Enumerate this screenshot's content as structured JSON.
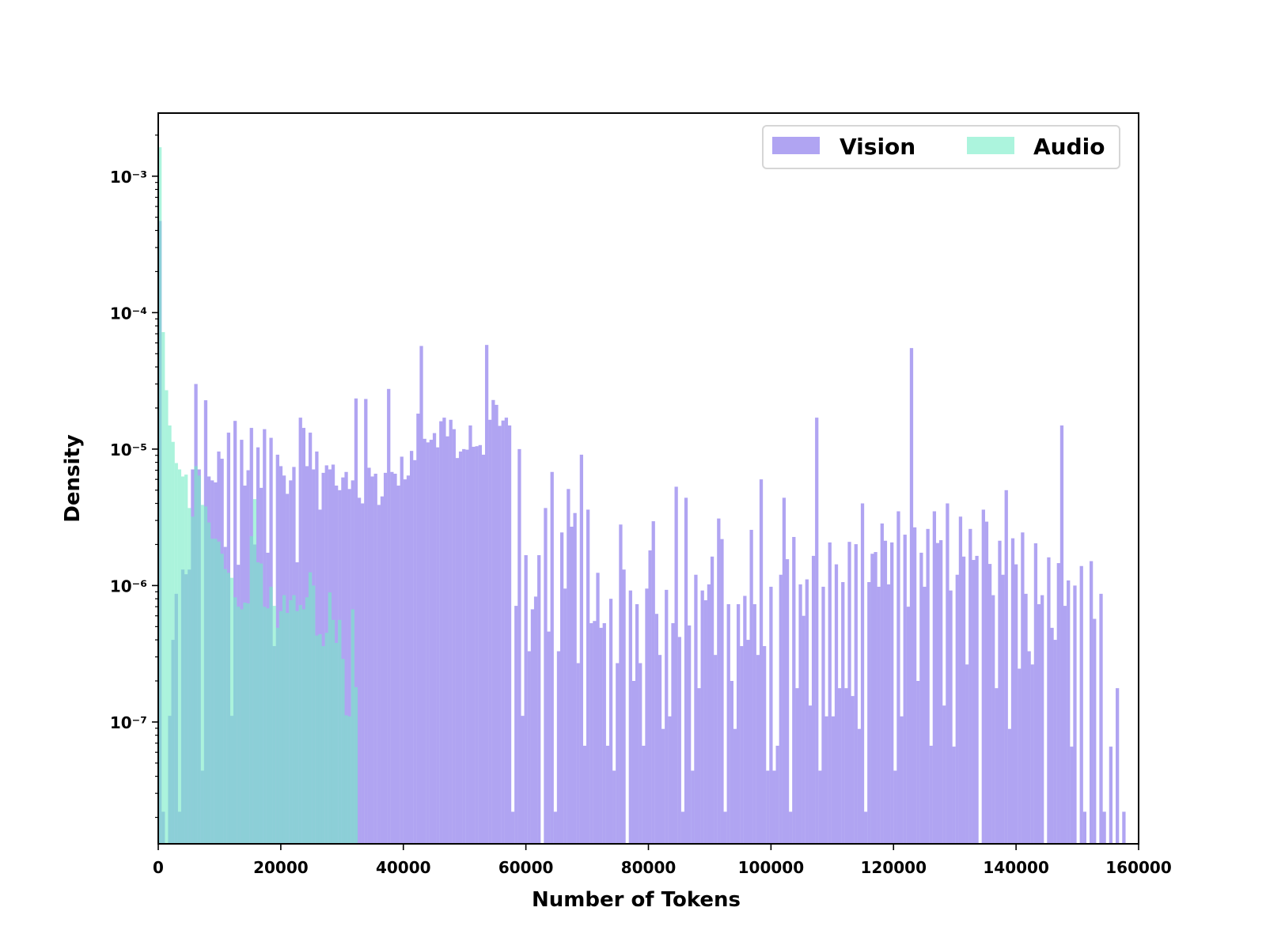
{
  "chart_data": {
    "type": "bar",
    "subtype": "histogram",
    "title": "",
    "xlabel": "Number of Tokens",
    "ylabel": "Density",
    "xscale": "linear",
    "yscale": "log",
    "xlim": [
      0,
      160000
    ],
    "ylim": [
      1.28e-08,
      0.0029
    ],
    "xticks": [
      0,
      20000,
      40000,
      60000,
      80000,
      100000,
      120000,
      140000,
      160000
    ],
    "xtick_labels": [
      "0",
      "20000",
      "40000",
      "60000",
      "80000",
      "100000",
      "120000",
      "140000",
      "160000"
    ],
    "yticks": [
      1e-07,
      1e-06,
      1e-05,
      0.0001,
      0.001
    ],
    "ytick_labels": [
      "10⁻⁷",
      "10⁻⁶",
      "10⁻⁵",
      "10⁻⁴",
      "10⁻³"
    ],
    "grid": false,
    "legend": {
      "placement": "top-right",
      "columns": 2
    },
    "bin_width": 533.3,
    "series": [
      {
        "name": "Vision",
        "color": "#b0a4f2",
        "values": [
          0.00047,
          2.2e-08,
          0,
          1.11e-07,
          4e-07,
          8.7e-07,
          2.2e-08,
          1.31e-06,
          1.21e-06,
          1.31e-06,
          7.1e-06,
          3e-05,
          7.1e-06,
          4.4e-08,
          2.28e-05,
          6.3e-06,
          5.9e-06,
          5.7e-06,
          9.6e-06,
          8.5e-06,
          1.92e-06,
          1.32e-05,
          1.11e-07,
          1.61e-05,
          1.42e-06,
          1.17e-05,
          5.4e-06,
          7e-06,
          1.43e-05,
          2e-06,
          1.03e-05,
          5.2e-06,
          1.4e-05,
          1.74e-06,
          1.21e-05,
          3.6e-07,
          9.1e-06,
          7.5e-06,
          6.4e-06,
          4.7e-06,
          5.9e-06,
          7.4e-06,
          1.48e-06,
          1.7e-05,
          1.43e-05,
          7.5e-06,
          1.32e-05,
          7.1e-06,
          9.6e-06,
          3.6e-06,
          6.7e-06,
          7.6e-06,
          7.1e-06,
          7.7e-06,
          5.4e-06,
          5e-06,
          6.2e-06,
          6.8e-06,
          5.1e-06,
          5.9e-06,
          2.35e-05,
          4.4e-06,
          4e-06,
          2.33e-05,
          7.3e-06,
          6.3e-06,
          6.6e-06,
          3.9e-06,
          4.5e-06,
          6.7e-06,
          2.76e-05,
          6.8e-06,
          6.6e-06,
          5.4e-06,
          8.8e-06,
          6e-06,
          6.4e-06,
          9.7e-06,
          8.3e-06,
          1.82e-05,
          5.7e-05,
          1.19e-05,
          1.12e-05,
          1.17e-05,
          1.31e-05,
          1.03e-05,
          1.6e-05,
          1.7e-05,
          1.24e-05,
          1.64e-05,
          1.4e-05,
          8.6e-06,
          9.6e-06,
          1e-05,
          9.9e-06,
          1.49e-05,
          1.04e-05,
          1.05e-05,
          1.07e-05,
          9.1e-06,
          5.8e-05,
          1.64e-05,
          2.29e-05,
          2.11e-05,
          1.48e-05,
          1.62e-05,
          1.7e-05,
          1.49e-05,
          2.2e-08,
          7.1e-07,
          1e-05,
          1.11e-07,
          1.67e-06,
          3.3e-07,
          6.7e-07,
          8.3e-07,
          1.67e-06,
          0,
          3.7e-06,
          4.6e-07,
          6.8e-06,
          2.2e-08,
          3.3e-07,
          2.45e-06,
          9.5e-07,
          5.1e-06,
          2.7e-06,
          3.4e-06,
          2.7e-07,
          9.1e-06,
          6.7e-08,
          3.6e-06,
          5.3e-07,
          5.5e-07,
          1.24e-06,
          4.9e-07,
          5.3e-07,
          6.7e-08,
          8e-07,
          4.4e-08,
          2.7e-07,
          2.8e-06,
          1.31e-06,
          0,
          9.2e-07,
          2e-07,
          7.3e-07,
          2.7e-07,
          6.7e-08,
          9.5e-07,
          1.81e-06,
          2.96e-06,
          6.2e-07,
          3.1e-07,
          8.9e-08,
          9.3e-07,
          1.1e-07,
          5.3e-07,
          5.3e-06,
          4.2e-07,
          2.2e-08,
          4.4e-06,
          5.1e-07,
          4.4e-08,
          1.2e-06,
          1.77e-07,
          9.2e-07,
          7.8e-07,
          1.02e-06,
          1.63e-06,
          3.1e-07,
          3.1e-06,
          2.19e-06,
          2.2e-08,
          7.3e-07,
          2e-07,
          8.9e-08,
          7.3e-07,
          3.6e-07,
          8.4e-07,
          4e-07,
          2.56e-06,
          7.3e-07,
          3.1e-07,
          6e-06,
          3.6e-07,
          4.4e-08,
          9.8e-07,
          4.4e-08,
          6.7e-08,
          1.2e-06,
          4.4e-06,
          1.56e-06,
          2.2e-08,
          2.27e-06,
          1.77e-07,
          1.02e-06,
          6e-07,
          1.11e-06,
          1.32e-07,
          1.65e-06,
          1.7e-05,
          4.4e-08,
          9.8e-07,
          1.1e-07,
          2.07e-06,
          1.1e-07,
          1.43e-06,
          1.77e-07,
          1.06e-06,
          1.77e-07,
          2.09e-06,
          1.55e-07,
          2.01e-06,
          8.9e-08,
          4e-06,
          2.2e-08,
          1.06e-06,
          1.71e-06,
          1.76e-06,
          9.8e-07,
          2.85e-06,
          2.13e-06,
          1.02e-06,
          2.07e-06,
          4.4e-08,
          3.5e-06,
          1.1e-07,
          2.36e-06,
          7e-07,
          5.5e-05,
          2.67e-06,
          2e-07,
          1.74e-06,
          9.8e-07,
          2.6e-06,
          6.7e-08,
          3.5e-06,
          2.05e-06,
          2.15e-06,
          1.32e-07,
          4e-06,
          9.2e-07,
          6.6e-08,
          1.2e-06,
          3.2e-06,
          1.63e-06,
          2.64e-07,
          2.6e-06,
          1.54e-06,
          1.65e-06,
          0,
          3.6e-06,
          2.94e-06,
          1.44e-06,
          8.5e-07,
          1.77e-07,
          2.13e-06,
          1.2e-06,
          5e-06,
          8.9e-08,
          2.22e-06,
          1.43e-06,
          2.46e-07,
          2.45e-06,
          8.7e-07,
          3.3e-07,
          2.64e-07,
          2.04e-06,
          7.3e-07,
          8.5e-07,
          0,
          1.61e-06,
          4.9e-07,
          4e-07,
          1.46e-06,
          1.49e-05,
          7.1e-07,
          1.09e-06,
          6.6e-08,
          1e-06,
          0,
          1.39e-06,
          2.2e-08,
          0,
          1.51e-06,
          5.7e-07,
          0,
          8.7e-07,
          2.2e-08,
          0,
          6.6e-08,
          0,
          1.77e-07,
          0,
          2.2e-08
        ]
      },
      {
        "name": "Audio",
        "color": "#75ecc6",
        "values": [
          0.00163,
          7.2e-05,
          2.7e-05,
          1.49e-05,
          1.13e-05,
          7.9e-06,
          7.1e-06,
          6.3e-06,
          6.5e-06,
          3.7e-06,
          3.2e-06,
          7.5e-06,
          6.4e-06,
          3.9e-06,
          3.8e-06,
          2.9e-06,
          2.2e-06,
          2.2e-06,
          2.1e-06,
          1.71e-06,
          1.32e-06,
          1.24e-06,
          1.14e-06,
          8.2e-07,
          7e-07,
          6.7e-07,
          7.5e-07,
          7.4e-07,
          2.3e-06,
          4.3e-06,
          1.48e-06,
          1.45e-06,
          7e-07,
          6.8e-07,
          9.8e-07,
          7.1e-07,
          4.9e-07,
          6.5e-07,
          8.5e-07,
          6.3e-07,
          7.8e-07,
          8.5e-07,
          6.5e-07,
          7.2e-07,
          6.7e-07,
          8.2e-07,
          1.25e-06,
          1e-06,
          4.3e-07,
          4.4e-07,
          3.6e-07,
          4.5e-07,
          8.9e-07,
          5.6e-07,
          3.8e-07,
          5.6e-07,
          2.9e-07,
          1.12e-07,
          1.1e-07,
          6.7e-07,
          1.8e-07
        ]
      }
    ]
  }
}
